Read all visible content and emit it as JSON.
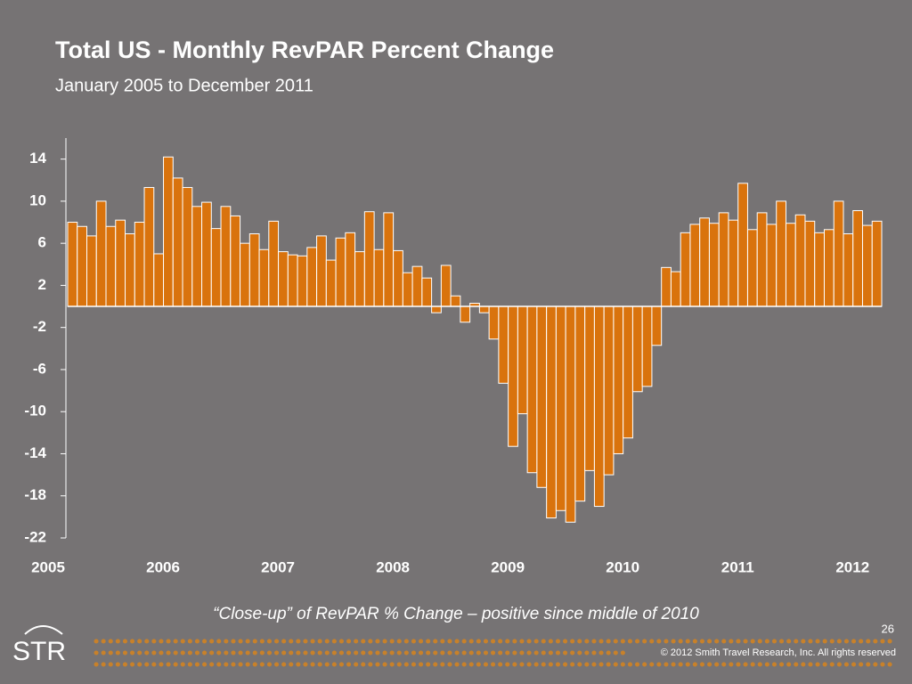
{
  "chart_data": {
    "type": "bar",
    "title": "Total US - Monthly RevPAR Percent Change",
    "subtitle": "January 2005 to December 2011",
    "categories": [
      "2005",
      null,
      null,
      null,
      null,
      null,
      null,
      null,
      null,
      null,
      null,
      null,
      "2006",
      null,
      null,
      null,
      null,
      null,
      null,
      null,
      null,
      null,
      null,
      null,
      "2007",
      null,
      null,
      null,
      null,
      null,
      null,
      null,
      null,
      null,
      null,
      null,
      "2008",
      null,
      null,
      null,
      null,
      null,
      null,
      null,
      null,
      null,
      null,
      null,
      "2009",
      null,
      null,
      null,
      null,
      null,
      null,
      null,
      null,
      null,
      null,
      null,
      "2010",
      null,
      null,
      null,
      null,
      null,
      null,
      null,
      null,
      null,
      null,
      null,
      "2011",
      null,
      null,
      null,
      null,
      null,
      null,
      null,
      null,
      null,
      null,
      null,
      "2012"
    ],
    "values": [
      8.0,
      7.6,
      6.7,
      10.0,
      7.6,
      8.2,
      6.9,
      8.0,
      11.3,
      5.0,
      14.2,
      12.2,
      11.3,
      9.5,
      9.9,
      7.4,
      9.5,
      8.6,
      6.0,
      6.9,
      5.4,
      8.1,
      5.2,
      4.9,
      4.8,
      5.6,
      6.7,
      4.4,
      6.5,
      7.0,
      5.2,
      9.0,
      5.4,
      8.9,
      5.3,
      3.2,
      3.8,
      2.7,
      -0.6,
      3.9,
      1.0,
      -1.5,
      0.3,
      -0.6,
      -3.1,
      -7.3,
      -13.3,
      -10.2,
      -15.8,
      -17.2,
      -20.1,
      -19.4,
      -20.5,
      -18.5,
      -15.6,
      -19.0,
      -16.0,
      -14.0,
      -12.5,
      -8.1,
      -7.6,
      -3.7,
      3.7,
      3.3,
      7.0,
      7.8,
      8.4,
      7.9,
      8.9,
      8.2,
      11.7,
      7.3,
      8.9,
      7.8,
      10.0,
      7.9,
      8.7,
      8.1,
      7.0,
      7.3,
      10.0,
      6.9,
      9.1,
      7.7,
      8.1
    ],
    "color": "#d9730d",
    "ylim": [
      -22,
      16
    ],
    "yticks": [
      -22,
      -18,
      -14,
      -10,
      -6,
      -2,
      2,
      6,
      10,
      14
    ],
    "grid": false
  },
  "footer": {
    "caption": "“Close-up” of RevPAR % Change – positive since middle of 2010",
    "page_number": "26",
    "logo": "STR",
    "copyright": "© 2012 Smith Travel Research, Inc. All rights reserved"
  }
}
